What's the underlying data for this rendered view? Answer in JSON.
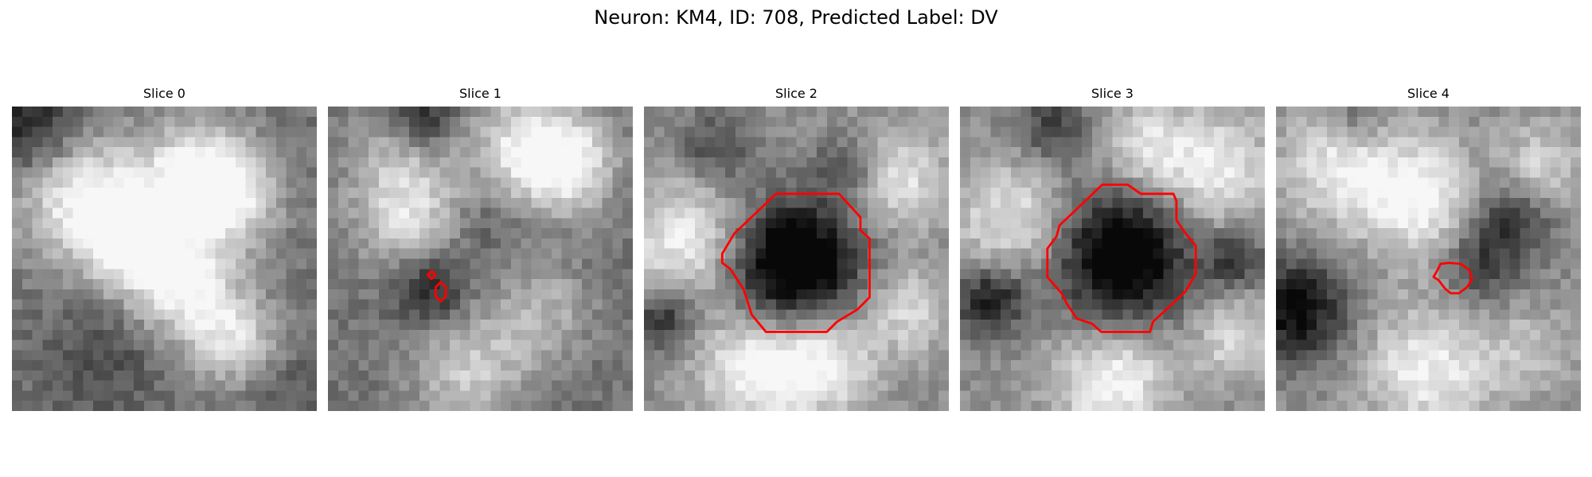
{
  "figure": {
    "title": "Neuron: KM4, ID: 708, Predicted Label: DV"
  },
  "panels": [
    {
      "title": "Slice 0"
    },
    {
      "title": "Slice 1"
    },
    {
      "title": "Slice 2"
    },
    {
      "title": "Slice 3"
    },
    {
      "title": "Slice 4"
    }
  ],
  "colors": {
    "contour": "#ff0000",
    "background": "#ffffff"
  }
}
